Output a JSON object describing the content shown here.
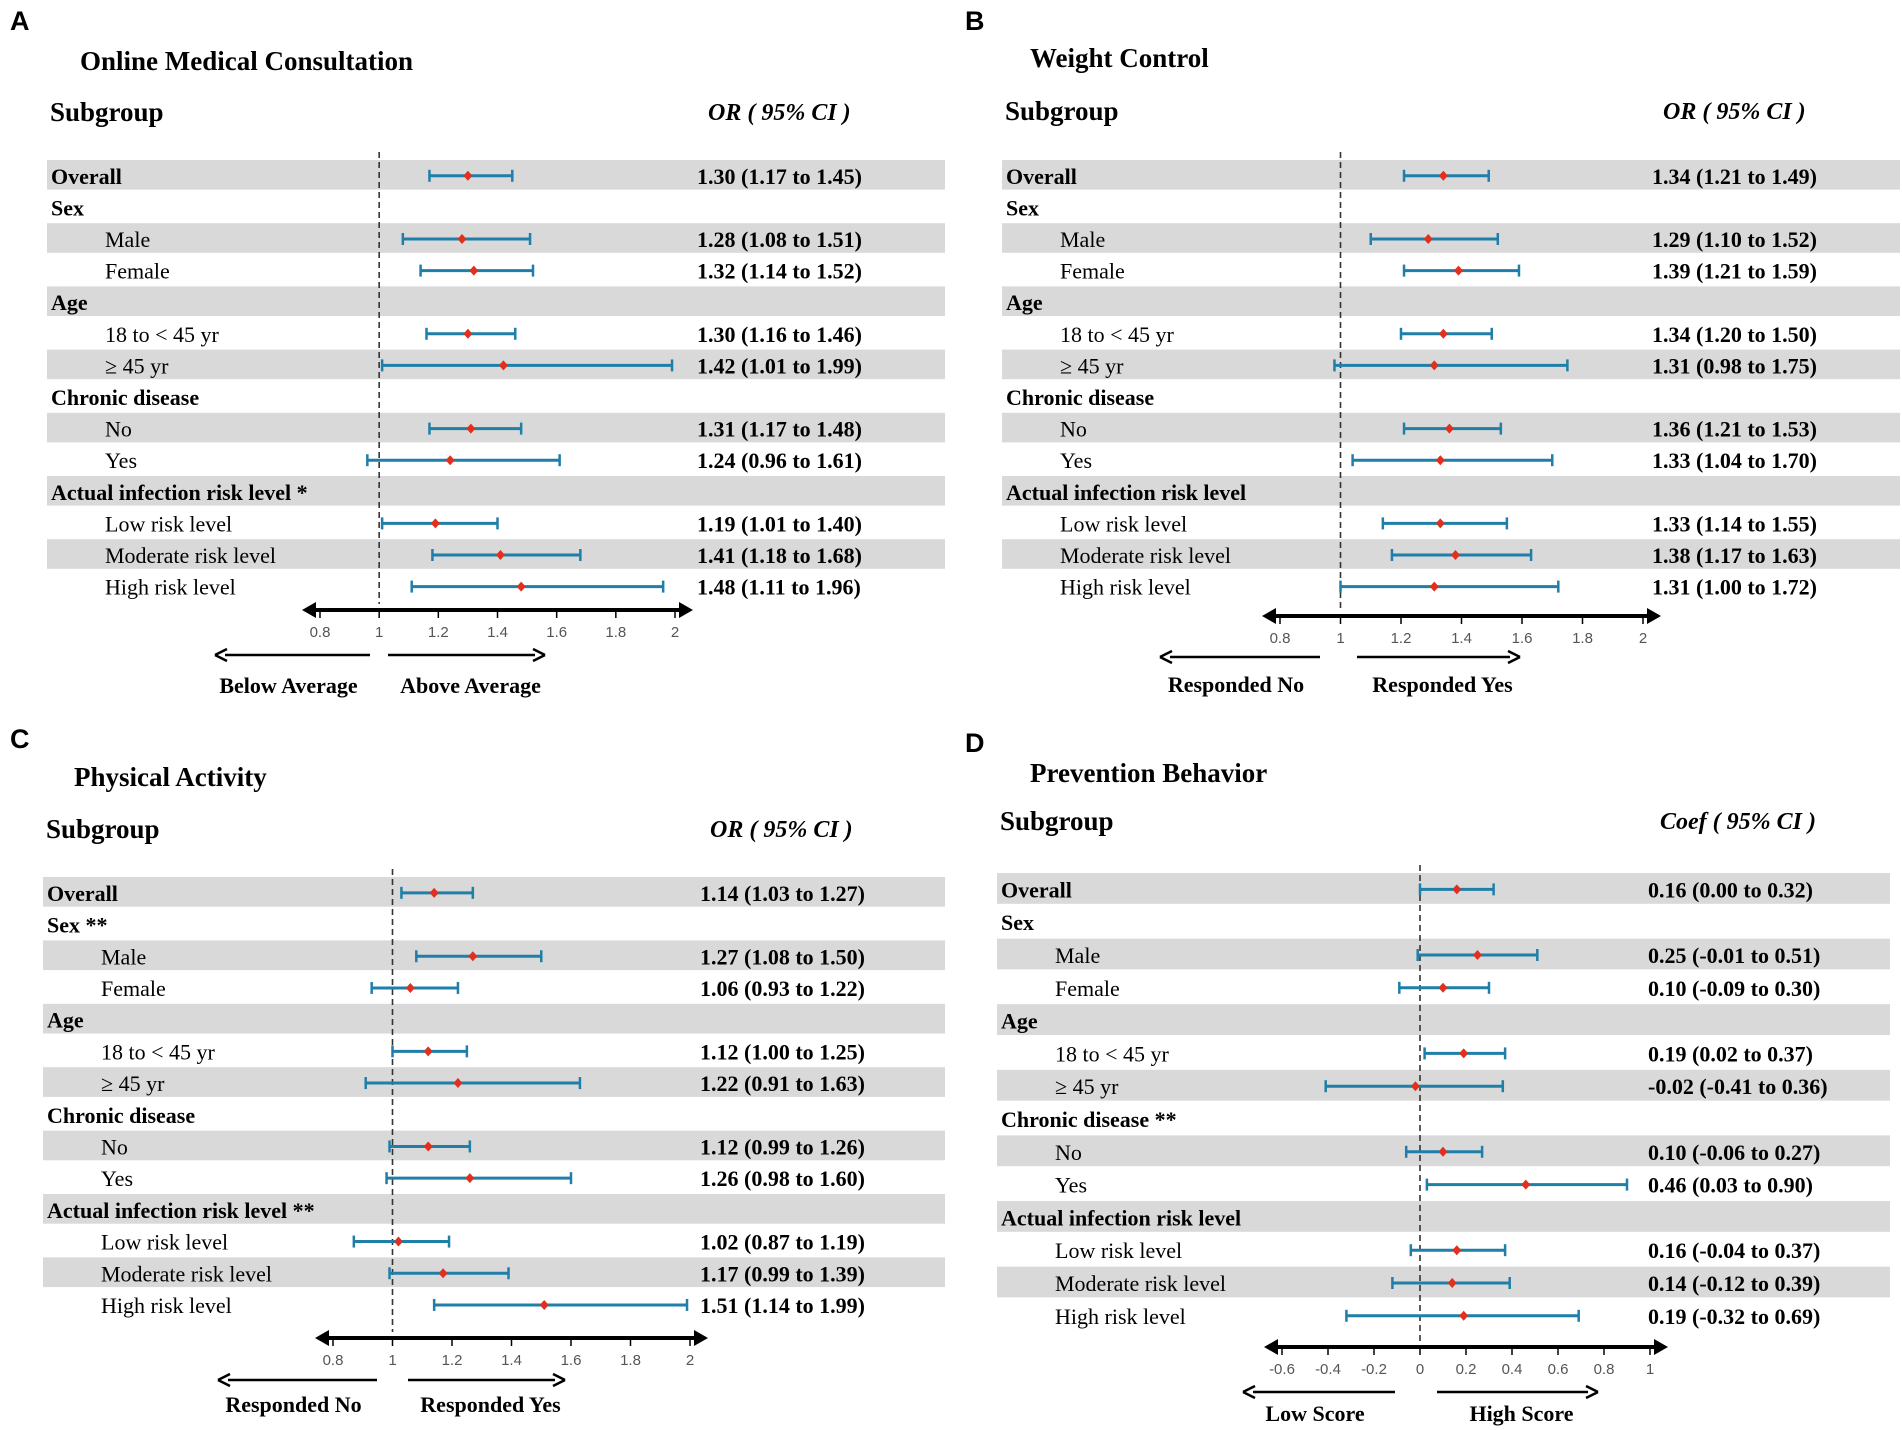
{
  "colors": {
    "ci": "#1f7fa8",
    "point": "#e0301e",
    "shade": "#d9d9d9",
    "axis": "#000000",
    "ref": "#333333"
  },
  "chart_data": [
    {
      "type": "forest",
      "panel": "A",
      "title": "Online Medical Consultation",
      "subgroup_header": "Subgroup",
      "value_header": "OR ( 95%  CI )",
      "ref_value": 1,
      "xlim": [
        0.8,
        2
      ],
      "ticks": [
        "0.8",
        "1",
        "1.2",
        "1.4",
        "1.6",
        "1.8",
        "2"
      ],
      "left_label": "Below Average",
      "right_label": "Above Average",
      "rows": [
        {
          "label": "Overall",
          "kind": "group",
          "shaded": true,
          "est": 1.3,
          "lo": 1.17,
          "hi": 1.45,
          "text": "1.30 (1.17 to 1.45)"
        },
        {
          "label": "Sex",
          "kind": "group",
          "shaded": false
        },
        {
          "label": "Male",
          "kind": "sub",
          "shaded": true,
          "est": 1.28,
          "lo": 1.08,
          "hi": 1.51,
          "text": "1.28 (1.08 to 1.51)"
        },
        {
          "label": "Female",
          "kind": "sub",
          "shaded": false,
          "est": 1.32,
          "lo": 1.14,
          "hi": 1.52,
          "text": "1.32 (1.14 to 1.52)"
        },
        {
          "label": "Age",
          "kind": "group",
          "shaded": true
        },
        {
          "label": "18 to < 45 yr",
          "kind": "sub",
          "shaded": false,
          "est": 1.3,
          "lo": 1.16,
          "hi": 1.46,
          "text": "1.30 (1.16 to 1.46)"
        },
        {
          "label": "≥ 45 yr",
          "kind": "sub",
          "shaded": true,
          "est": 1.42,
          "lo": 1.01,
          "hi": 1.99,
          "text": "1.42 (1.01 to 1.99)"
        },
        {
          "label": "Chronic disease",
          "kind": "group",
          "shaded": false
        },
        {
          "label": "No",
          "kind": "sub",
          "shaded": true,
          "est": 1.31,
          "lo": 1.17,
          "hi": 1.48,
          "text": "1.31 (1.17 to 1.48)"
        },
        {
          "label": "Yes",
          "kind": "sub",
          "shaded": false,
          "est": 1.24,
          "lo": 0.96,
          "hi": 1.61,
          "text": "1.24 (0.96 to 1.61)"
        },
        {
          "label": "Actual infection risk level *",
          "kind": "group",
          "shaded": true
        },
        {
          "label": "Low risk level",
          "kind": "sub",
          "shaded": false,
          "est": 1.19,
          "lo": 1.01,
          "hi": 1.4,
          "text": "1.19 (1.01 to 1.40)"
        },
        {
          "label": "Moderate risk level",
          "kind": "sub",
          "shaded": true,
          "est": 1.41,
          "lo": 1.18,
          "hi": 1.68,
          "text": "1.41 (1.18 to 1.68)"
        },
        {
          "label": "High risk level",
          "kind": "sub",
          "shaded": false,
          "est": 1.48,
          "lo": 1.11,
          "hi": 1.96,
          "text": "1.48 (1.11 to 1.96)"
        }
      ]
    },
    {
      "type": "forest",
      "panel": "B",
      "title": "Weight Control",
      "subgroup_header": "Subgroup",
      "value_header": "OR ( 95%  CI )",
      "ref_value": 1,
      "xlim": [
        0.8,
        2
      ],
      "ticks": [
        "0.8",
        "1",
        "1.2",
        "1.4",
        "1.6",
        "1.8",
        "2"
      ],
      "left_label": "Responded No",
      "right_label": "Responded Yes",
      "rows": [
        {
          "label": "Overall",
          "kind": "group",
          "shaded": true,
          "est": 1.34,
          "lo": 1.21,
          "hi": 1.49,
          "text": "1.34 (1.21 to 1.49)"
        },
        {
          "label": "Sex",
          "kind": "group",
          "shaded": false
        },
        {
          "label": "Male",
          "kind": "sub",
          "shaded": true,
          "est": 1.29,
          "lo": 1.1,
          "hi": 1.52,
          "text": "1.29 (1.10 to 1.52)"
        },
        {
          "label": "Female",
          "kind": "sub",
          "shaded": false,
          "est": 1.39,
          "lo": 1.21,
          "hi": 1.59,
          "text": "1.39 (1.21 to 1.59)"
        },
        {
          "label": "Age",
          "kind": "group",
          "shaded": true
        },
        {
          "label": "18 to < 45 yr",
          "kind": "sub",
          "shaded": false,
          "est": 1.34,
          "lo": 1.2,
          "hi": 1.5,
          "text": "1.34 (1.20 to 1.50)"
        },
        {
          "label": "≥ 45 yr",
          "kind": "sub",
          "shaded": true,
          "est": 1.31,
          "lo": 0.98,
          "hi": 1.75,
          "text": "1.31 (0.98 to 1.75)"
        },
        {
          "label": "Chronic disease",
          "kind": "group",
          "shaded": false
        },
        {
          "label": "No",
          "kind": "sub",
          "shaded": true,
          "est": 1.36,
          "lo": 1.21,
          "hi": 1.53,
          "text": "1.36 (1.21 to 1.53)"
        },
        {
          "label": "Yes",
          "kind": "sub",
          "shaded": false,
          "est": 1.33,
          "lo": 1.04,
          "hi": 1.7,
          "text": "1.33 (1.04 to 1.70)"
        },
        {
          "label": "Actual infection risk level",
          "kind": "group",
          "shaded": true
        },
        {
          "label": "Low risk level",
          "kind": "sub",
          "shaded": false,
          "est": 1.33,
          "lo": 1.14,
          "hi": 1.55,
          "text": "1.33 (1.14 to 1.55)"
        },
        {
          "label": "Moderate risk level",
          "kind": "sub",
          "shaded": true,
          "est": 1.38,
          "lo": 1.17,
          "hi": 1.63,
          "text": "1.38 (1.17 to 1.63)"
        },
        {
          "label": "High risk level",
          "kind": "sub",
          "shaded": false,
          "est": 1.31,
          "lo": 1.0,
          "hi": 1.72,
          "text": "1.31 (1.00 to 1.72)"
        }
      ]
    },
    {
      "type": "forest",
      "panel": "C",
      "title": "Physical Activity",
      "subgroup_header": "Subgroup",
      "value_header": "OR ( 95%  CI )",
      "ref_value": 1,
      "xlim": [
        0.8,
        2
      ],
      "ticks": [
        "0.8",
        "1",
        "1.2",
        "1.4",
        "1.6",
        "1.8",
        "2"
      ],
      "left_label": "Responded No",
      "right_label": "Responded Yes",
      "rows": [
        {
          "label": "Overall",
          "kind": "group",
          "shaded": true,
          "est": 1.14,
          "lo": 1.03,
          "hi": 1.27,
          "text": "1.14 (1.03 to 1.27)"
        },
        {
          "label": "Sex **",
          "kind": "group",
          "shaded": false
        },
        {
          "label": "Male",
          "kind": "sub",
          "shaded": true,
          "est": 1.27,
          "lo": 1.08,
          "hi": 1.5,
          "text": "1.27 (1.08 to 1.50)"
        },
        {
          "label": "Female",
          "kind": "sub",
          "shaded": false,
          "est": 1.06,
          "lo": 0.93,
          "hi": 1.22,
          "text": "1.06 (0.93 to 1.22)"
        },
        {
          "label": "Age",
          "kind": "group",
          "shaded": true
        },
        {
          "label": "18 to < 45 yr",
          "kind": "sub",
          "shaded": false,
          "est": 1.12,
          "lo": 1.0,
          "hi": 1.25,
          "text": "1.12 (1.00 to 1.25)"
        },
        {
          "label": "≥ 45 yr",
          "kind": "sub",
          "shaded": true,
          "est": 1.22,
          "lo": 0.91,
          "hi": 1.63,
          "text": "1.22 (0.91 to 1.63)"
        },
        {
          "label": "Chronic disease",
          "kind": "group",
          "shaded": false
        },
        {
          "label": "No",
          "kind": "sub",
          "shaded": true,
          "est": 1.12,
          "lo": 0.99,
          "hi": 1.26,
          "text": "1.12 (0.99 to 1.26)"
        },
        {
          "label": "Yes",
          "kind": "sub",
          "shaded": false,
          "est": 1.26,
          "lo": 0.98,
          "hi": 1.6,
          "text": "1.26 (0.98 to 1.60)"
        },
        {
          "label": "Actual infection risk level **",
          "kind": "group",
          "shaded": true
        },
        {
          "label": "Low risk level",
          "kind": "sub",
          "shaded": false,
          "est": 1.02,
          "lo": 0.87,
          "hi": 1.19,
          "text": "1.02 (0.87 to 1.19)"
        },
        {
          "label": "Moderate risk level",
          "kind": "sub",
          "shaded": true,
          "est": 1.17,
          "lo": 0.99,
          "hi": 1.39,
          "text": "1.17 (0.99 to 1.39)"
        },
        {
          "label": "High risk level",
          "kind": "sub",
          "shaded": false,
          "est": 1.51,
          "lo": 1.14,
          "hi": 1.99,
          "text": "1.51 (1.14 to 1.99)"
        }
      ]
    },
    {
      "type": "forest",
      "panel": "D",
      "title": "Prevention Behavior",
      "subgroup_header": "Subgroup",
      "value_header": "Coef ( 95%  CI )",
      "ref_value": 0,
      "xlim": [
        -0.6,
        1
      ],
      "ticks": [
        "-0.6",
        "-0.4",
        "-0.2",
        "0",
        "0.2",
        "0.4",
        "0.6",
        "0.8",
        "1"
      ],
      "left_label": "Low Score",
      "right_label": "High Score",
      "rows": [
        {
          "label": "Overall",
          "kind": "group",
          "shaded": true,
          "est": 0.16,
          "lo": 0.0,
          "hi": 0.32,
          "text": "0.16 (0.00 to 0.32)"
        },
        {
          "label": "Sex",
          "kind": "group",
          "shaded": false
        },
        {
          "label": "Male",
          "kind": "sub",
          "shaded": true,
          "est": 0.25,
          "lo": -0.01,
          "hi": 0.51,
          "text": "0.25 (-0.01 to 0.51)"
        },
        {
          "label": "Female",
          "kind": "sub",
          "shaded": false,
          "est": 0.1,
          "lo": -0.09,
          "hi": 0.3,
          "text": "0.10 (-0.09 to 0.30)"
        },
        {
          "label": "Age",
          "kind": "group",
          "shaded": true
        },
        {
          "label": "18 to < 45 yr",
          "kind": "sub",
          "shaded": false,
          "est": 0.19,
          "lo": 0.02,
          "hi": 0.37,
          "text": "0.19 (0.02 to 0.37)"
        },
        {
          "label": "≥ 45 yr",
          "kind": "sub",
          "shaded": true,
          "est": -0.02,
          "lo": -0.41,
          "hi": 0.36,
          "text": "-0.02 (-0.41 to 0.36)"
        },
        {
          "label": "Chronic disease **",
          "kind": "group",
          "shaded": false
        },
        {
          "label": "No",
          "kind": "sub",
          "shaded": true,
          "est": 0.1,
          "lo": -0.06,
          "hi": 0.27,
          "text": "0.10 (-0.06 to 0.27)"
        },
        {
          "label": "Yes",
          "kind": "sub",
          "shaded": false,
          "est": 0.46,
          "lo": 0.03,
          "hi": 0.9,
          "text": "0.46 (0.03 to 0.90)"
        },
        {
          "label": "Actual infection risk level",
          "kind": "group",
          "shaded": true
        },
        {
          "label": "Low risk level",
          "kind": "sub",
          "shaded": false,
          "est": 0.16,
          "lo": -0.04,
          "hi": 0.37,
          "text": "0.16 (-0.04 to 0.37)"
        },
        {
          "label": "Moderate risk level",
          "kind": "sub",
          "shaded": true,
          "est": 0.14,
          "lo": -0.12,
          "hi": 0.39,
          "text": "0.14 (-0.12 to 0.39)"
        },
        {
          "label": "High risk level",
          "kind": "sub",
          "shaded": false,
          "est": 0.19,
          "lo": -0.32,
          "hi": 0.69,
          "text": "0.19 (-0.32 to 0.69)"
        }
      ]
    }
  ]
}
